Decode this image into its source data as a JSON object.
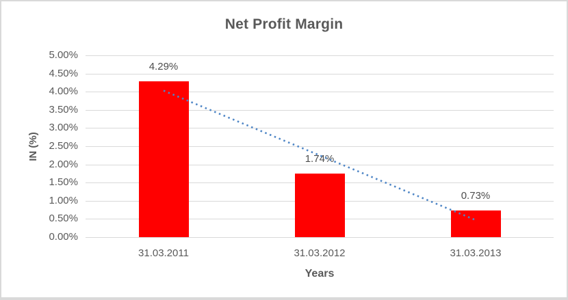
{
  "chart_data": {
    "type": "bar",
    "title": "Net Profit Margin",
    "xlabel": "Years",
    "ylabel": "IN (%)",
    "categories": [
      "31.03.2011",
      "31.03.2012",
      "31.03.2013"
    ],
    "values": [
      4.29,
      1.74,
      0.73
    ],
    "data_labels": [
      "4.29%",
      "1.74%",
      "0.73%"
    ],
    "y_tick_labels": [
      "5.00%",
      "4.50%",
      "4.00%",
      "3.50%",
      "3.00%",
      "2.50%",
      "2.00%",
      "1.50%",
      "1.00%",
      "0.50%",
      "0.00%"
    ],
    "ylim": [
      0,
      5
    ],
    "y_unit": "%",
    "grid": true,
    "legend": "none",
    "bar_color": "#ff0000",
    "text_color": "#595959",
    "gridline_color": "#d9d9d9",
    "frame_border_color": "#d9d9d9",
    "trendline": {
      "type": "linear",
      "line_style": "dotted",
      "color": "#4f86c6",
      "start_value": 4.03,
      "end_value": 0.47
    }
  }
}
